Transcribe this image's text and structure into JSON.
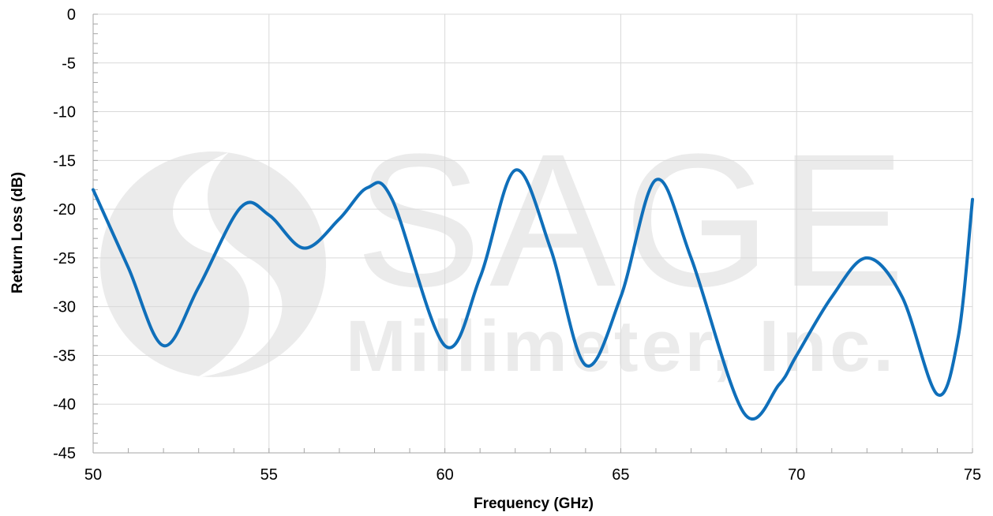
{
  "chart_data": {
    "type": "line",
    "title": "",
    "xlabel": "Frequency (GHz)",
    "ylabel": "Return Loss (dB)",
    "xlim": [
      50,
      75
    ],
    "ylim": [
      -45,
      0
    ],
    "x_ticks": [
      50,
      55,
      60,
      65,
      70,
      75
    ],
    "y_ticks": [
      0,
      -5,
      -10,
      -15,
      -20,
      -25,
      -30,
      -35,
      -40,
      -45
    ],
    "grid": true,
    "legend": "none",
    "series": [
      {
        "color": "#0f6fba",
        "points": [
          [
            50,
            -18
          ],
          [
            51,
            -26
          ],
          [
            52,
            -34
          ],
          [
            53,
            -28
          ],
          [
            54.2,
            -19.8
          ],
          [
            55,
            -20.6
          ],
          [
            56,
            -24
          ],
          [
            57,
            -21
          ],
          [
            57.8,
            -17.8
          ],
          [
            58.5,
            -19
          ],
          [
            60,
            -34
          ],
          [
            61,
            -27
          ],
          [
            62,
            -16
          ],
          [
            63,
            -24
          ],
          [
            64,
            -36
          ],
          [
            65,
            -29
          ],
          [
            66,
            -17
          ],
          [
            67,
            -25
          ],
          [
            68.5,
            -40.9
          ],
          [
            69.5,
            -38
          ],
          [
            70,
            -35
          ],
          [
            71,
            -29
          ],
          [
            72,
            -25
          ],
          [
            73,
            -29
          ],
          [
            74,
            -39
          ],
          [
            74.6,
            -33
          ],
          [
            75,
            -19
          ]
        ]
      }
    ]
  },
  "watermark": {
    "word": "SAGE",
    "subtitle": "Millimeter, Inc."
  }
}
